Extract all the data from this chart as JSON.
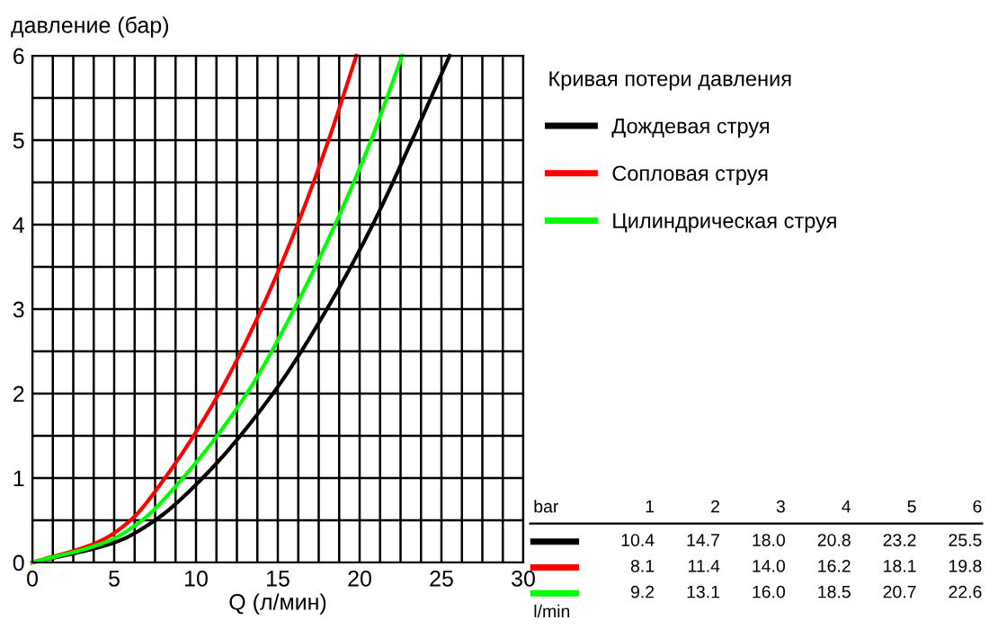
{
  "chart_data": {
    "type": "line",
    "xlabel": "Q (л/мин)",
    "ylabel": "давление (бар)",
    "legend_title": "Кривая потери давления",
    "xlim": [
      0,
      30
    ],
    "ylim": [
      0,
      6
    ],
    "xticks": [
      0,
      {
        "value": 1.25,
        "label": null
      },
      {
        "value": 2.5,
        "label": null
      },
      {
        "value": 3.75,
        "label": null
      },
      5,
      {
        "value": 6.25,
        "label": null
      },
      {
        "value": 7.5,
        "label": null
      },
      {
        "value": 8.75,
        "label": null
      },
      10,
      {
        "value": 11.25,
        "label": null
      },
      {
        "value": 12.5,
        "label": null
      },
      {
        "value": 13.75,
        "label": null
      },
      15,
      {
        "value": 16.25,
        "label": null
      },
      {
        "value": 17.5,
        "label": null
      },
      {
        "value": 18.75,
        "label": null
      },
      20,
      {
        "value": 21.25,
        "label": null
      },
      {
        "value": 22.5,
        "label": null
      },
      {
        "value": 23.75,
        "label": null
      },
      25,
      {
        "value": 26.25,
        "label": null
      },
      {
        "value": 27.5,
        "label": null
      },
      {
        "value": 28.75,
        "label": null
      },
      30
    ],
    "yticks": [
      0,
      {
        "value": 0.5,
        "label": null
      },
      1,
      {
        "value": 1.5,
        "label": null
      },
      2,
      {
        "value": 2.5,
        "label": null
      },
      3,
      {
        "value": 3.5,
        "label": null
      },
      4,
      {
        "value": 4.5,
        "label": null
      },
      5,
      {
        "value": 5.5,
        "label": null
      },
      6
    ],
    "grid": true,
    "legend": "right",
    "marker": "none",
    "line_style": "solid",
    "series": [
      {
        "name": "Дождевая струя",
        "color": "#000000",
        "x": [
          0,
          5.2,
          7.5,
          10.4,
          14.7,
          18.0,
          20.8,
          23.2,
          25.5
        ],
        "values": [
          0,
          0.25,
          0.5,
          1,
          2,
          3,
          4,
          5,
          6
        ]
      },
      {
        "name": "Сопловая струя",
        "color": "#ff0000",
        "x": [
          0,
          4.1,
          6.0,
          8.1,
          11.4,
          14.0,
          16.2,
          18.1,
          19.8
        ],
        "values": [
          0,
          0.25,
          0.5,
          1,
          2,
          3,
          4,
          5,
          6
        ]
      },
      {
        "name": "Цилиндрическая струя",
        "color": "#00ff00",
        "x": [
          0,
          4.6,
          6.7,
          9.2,
          13.1,
          16.0,
          18.5,
          20.7,
          22.6
        ],
        "values": [
          0,
          0.25,
          0.5,
          1,
          2,
          3,
          4,
          5,
          6
        ]
      }
    ],
    "annotations": [
      "bar",
      "1",
      "2",
      "3",
      "4",
      "5",
      "6",
      "10.4",
      "14.7",
      "18.0",
      "20.8",
      "23.2",
      "25.5",
      "8.1",
      "11.4",
      "14.0",
      "16.2",
      "18.1",
      "19.8",
      "9.2",
      "13.1",
      "16.0",
      "18.5",
      "20.7",
      "22.6",
      "l/min"
    ]
  }
}
